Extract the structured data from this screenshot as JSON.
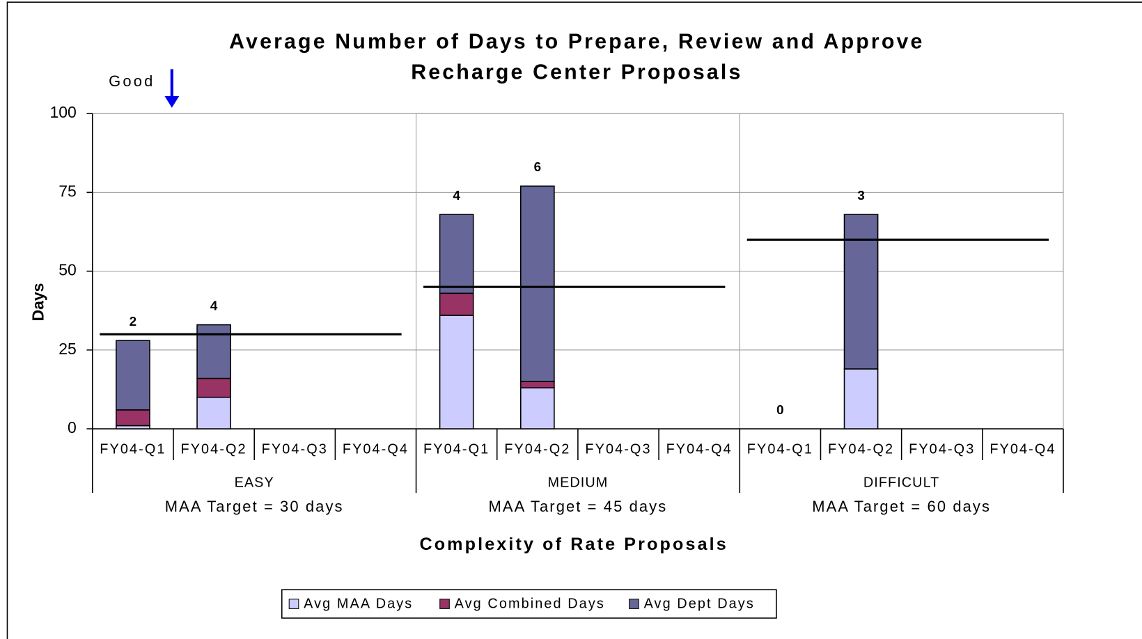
{
  "chart_data": {
    "type": "stacked-bar",
    "title": [
      "Average Number of Days to Prepare, Review and Approve",
      "Recharge Center Proposals"
    ],
    "annotation": "Good",
    "y_label": "Days",
    "x_label": "Complexity of Rate Proposals",
    "categories": [
      "FY04-Q1",
      "FY04-Q2",
      "FY04-Q3",
      "FY04-Q4",
      "FY04-Q1",
      "FY04-Q2",
      "FY04-Q3",
      "FY04-Q4",
      "FY04-Q1",
      "FY04-Q2",
      "FY04-Q3",
      "FY04-Q4"
    ],
    "groups": [
      {
        "name": "EASY",
        "note": "MAA Target = 30 days",
        "target": 30
      },
      {
        "name": "MEDIUM",
        "note": "MAA Target = 45 days",
        "target": 45
      },
      {
        "name": "DIFFICULT",
        "note": "MAA Target = 60 days",
        "target": 60
      }
    ],
    "series": [
      {
        "name": "Avg MAA Days",
        "color": "#ccccff",
        "values": [
          1,
          10,
          null,
          null,
          36,
          13,
          null,
          null,
          null,
          19,
          null,
          null
        ]
      },
      {
        "name": "Avg Combined Days",
        "color": "#993366",
        "values": [
          5,
          6,
          null,
          null,
          7,
          2,
          null,
          null,
          null,
          0,
          null,
          null
        ]
      },
      {
        "name": "Avg Dept Days",
        "color": "#666699",
        "values": [
          22,
          17,
          null,
          null,
          25,
          62,
          null,
          null,
          null,
          49,
          null,
          null
        ]
      }
    ],
    "counts": [
      2,
      4,
      null,
      null,
      4,
      6,
      null,
      null,
      0,
      3,
      null,
      null
    ],
    "ylim": [
      0,
      100
    ],
    "yticks": [
      0,
      25,
      50,
      75,
      100
    ],
    "grid": true
  }
}
